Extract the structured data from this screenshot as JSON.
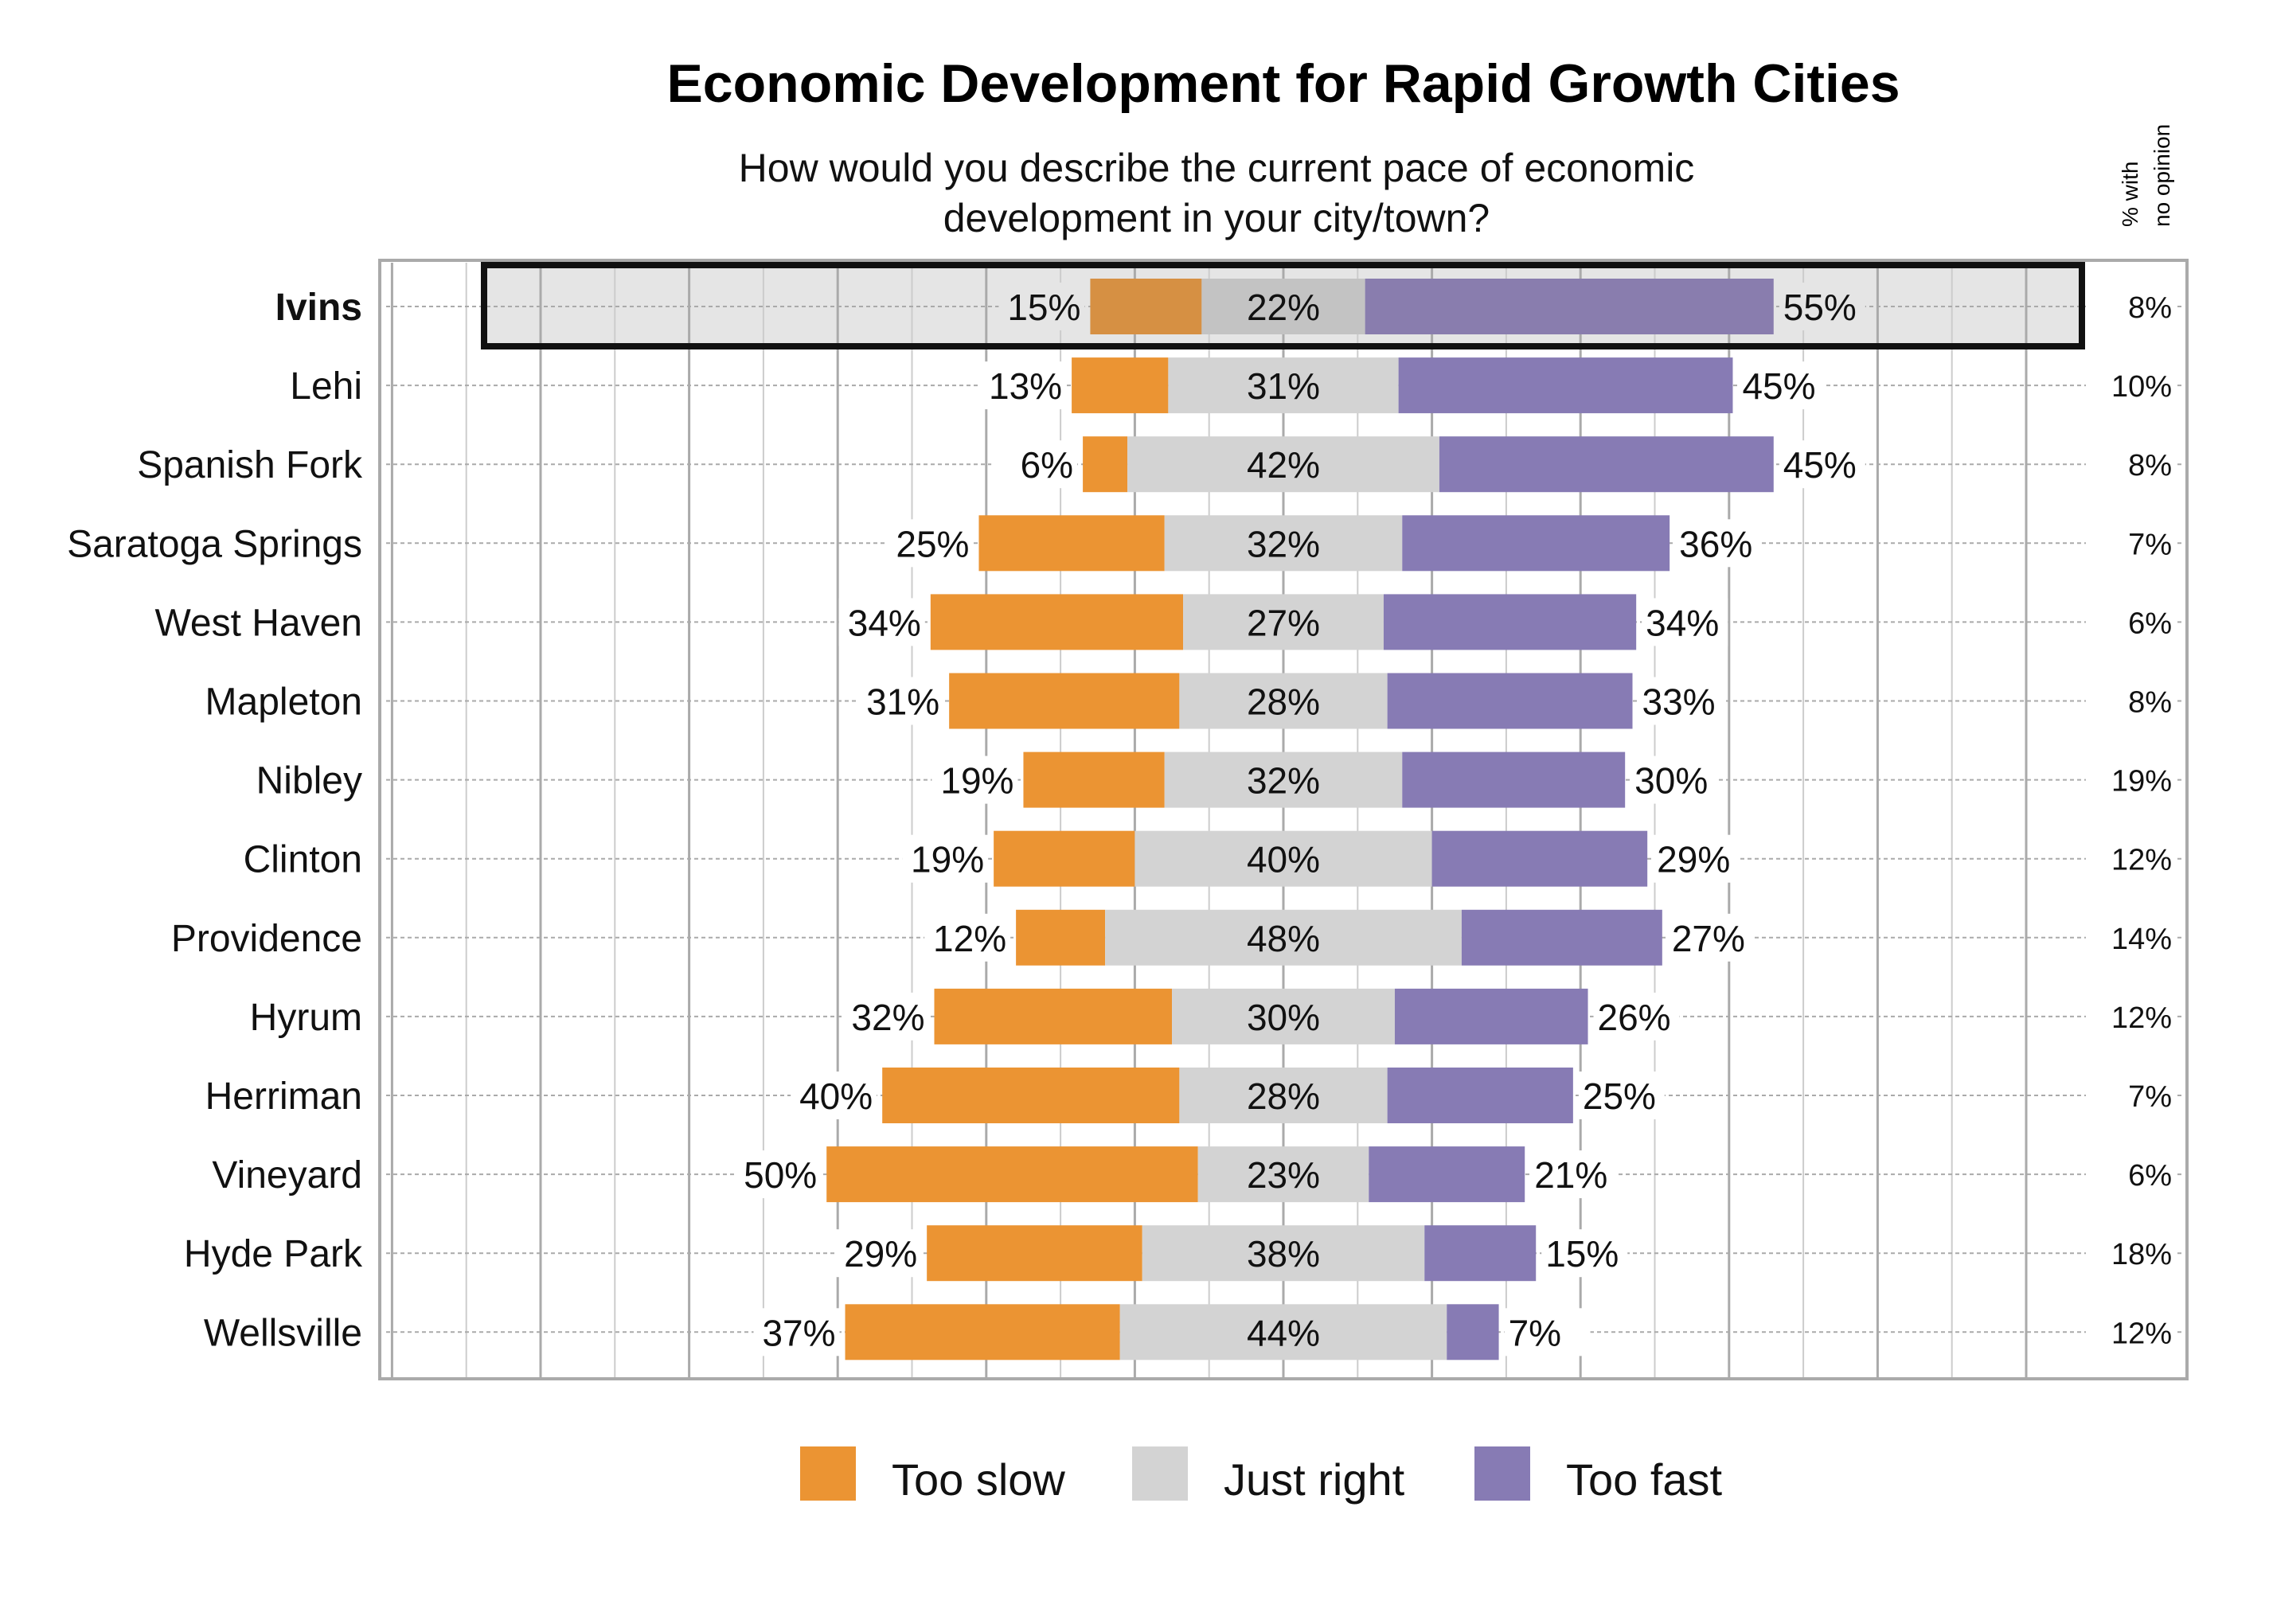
{
  "chart_data": {
    "type": "bar",
    "orientation": "horizontal",
    "stacked": "diverging",
    "title": "Economic Development for Rapid Growth Cities",
    "subtitle": [
      "How would you describe the current pace of economic",
      "development in your city/town?"
    ],
    "side_header": [
      "% with",
      "no opinion"
    ],
    "categories": [
      "Ivins",
      "Lehi",
      "Spanish Fork",
      "Saratoga Springs",
      "West Haven",
      "Mapleton",
      "Nibley",
      "Clinton",
      "Providence",
      "Hyrum",
      "Herriman",
      "Vineyard",
      "Hyde Park",
      "Wellsville"
    ],
    "highlighted": "Ivins",
    "series": [
      {
        "name": "Too slow",
        "color": "#EB9433",
        "values": [
          15,
          13,
          6,
          25,
          34,
          31,
          19,
          19,
          12,
          32,
          40,
          50,
          29,
          37
        ]
      },
      {
        "name": "Just right",
        "color": "#D3D3D3",
        "values": [
          22,
          31,
          42,
          32,
          27,
          28,
          32,
          40,
          48,
          30,
          28,
          23,
          38,
          44
        ]
      },
      {
        "name": "Too fast",
        "color": "#877BB4",
        "values": [
          55,
          45,
          45,
          36,
          34,
          33,
          30,
          29,
          27,
          26,
          25,
          21,
          15,
          7
        ]
      }
    ],
    "no_opinion": [
      8,
      10,
      8,
      7,
      6,
      8,
      19,
      12,
      14,
      12,
      7,
      6,
      18,
      12
    ],
    "legend_position": "bottom",
    "grid": true,
    "highlight_colors": {
      "Too slow": "#D69043",
      "Just right": "#C3C3C3",
      "Too fast": "#897DAE",
      "background": "#E5E5E5"
    }
  }
}
